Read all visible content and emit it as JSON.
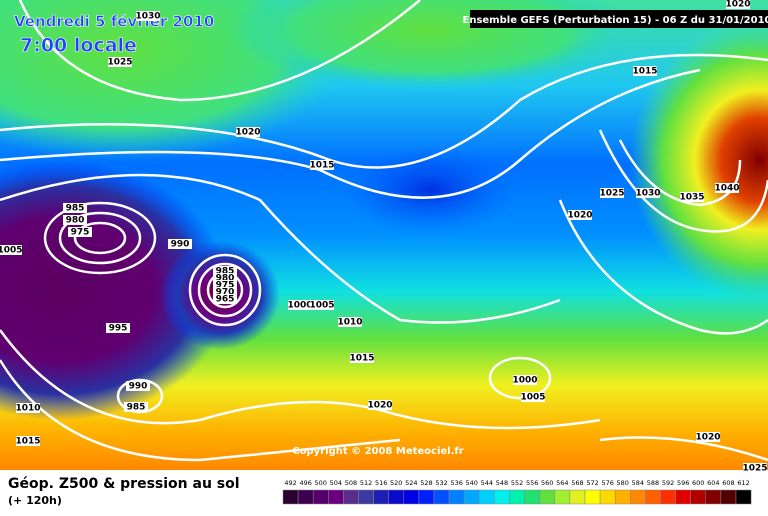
{
  "header": {
    "date": "Vendredi 5 février 2010",
    "time": "7:00 locale",
    "run": "Ensemble GEFS (Perturbation 15)  -  06 Z du 31/01/2010"
  },
  "copyright": "Copyright © 2008 Meteociel.fr",
  "legend": {
    "title": "Géop. Z500 & pression au sol",
    "lead": "(+ 120h)"
  },
  "isobar_labels": [
    "1030",
    "1025",
    "1020",
    "1015",
    "1015",
    "985",
    "980",
    "975",
    "990",
    "1005",
    "985",
    "980",
    "975",
    "970",
    "965",
    "995",
    "1000",
    "1005",
    "1010",
    "1015",
    "990",
    "985",
    "1010",
    "1015",
    "1020",
    "1000",
    "1005",
    "1020",
    "1025",
    "1020",
    "1025",
    "1030",
    "1035",
    "1040",
    "1020"
  ],
  "colorbar": {
    "values": [
      492,
      496,
      500,
      504,
      508,
      512,
      516,
      520,
      524,
      528,
      532,
      536,
      540,
      544,
      548,
      552,
      556,
      560,
      564,
      568,
      572,
      576,
      580,
      584,
      588,
      592,
      596,
      600,
      604,
      608,
      612
    ],
    "colors": [
      "#2a0030",
      "#3d0050",
      "#55006a",
      "#6a0080",
      "#5a2d8a",
      "#3a3aa0",
      "#1e1eb4",
      "#0a0acc",
      "#0000e6",
      "#0020ff",
      "#0050ff",
      "#0080ff",
      "#00a8ff",
      "#00d0ff",
      "#00f0f0",
      "#00f0b0",
      "#20e070",
      "#60e040",
      "#a0f030",
      "#e0f020",
      "#ffff00",
      "#ffd800",
      "#ffb000",
      "#ff8800",
      "#ff6000",
      "#ff3000",
      "#e00000",
      "#b00000",
      "#800000",
      "#500000",
      "#000000"
    ]
  }
}
